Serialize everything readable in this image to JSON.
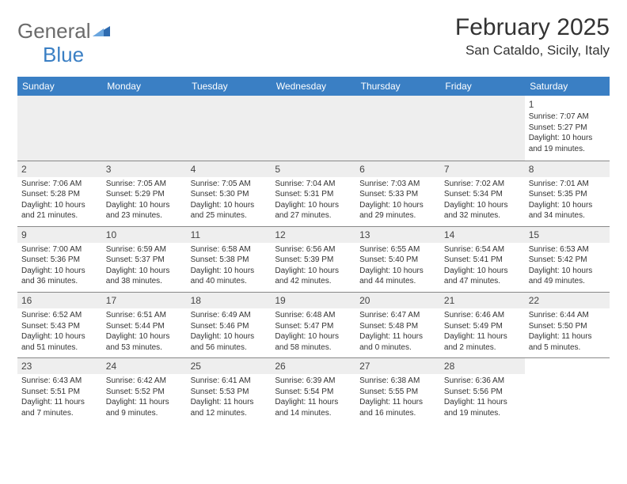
{
  "logo": {
    "text_general": "General",
    "text_blue": "Blue"
  },
  "title": "February 2025",
  "subtitle": "San Cataldo, Sicily, Italy",
  "colors": {
    "header_bg": "#3a7fc4",
    "header_text": "#ffffff",
    "daynum_bg": "#eeeeee",
    "border": "#888888",
    "text": "#333333"
  },
  "weekdays": [
    "Sunday",
    "Monday",
    "Tuesday",
    "Wednesday",
    "Thursday",
    "Friday",
    "Saturday"
  ],
  "days": {
    "1": {
      "sunrise": "7:07 AM",
      "sunset": "5:27 PM",
      "dl_h": 10,
      "dl_m": 19
    },
    "2": {
      "sunrise": "7:06 AM",
      "sunset": "5:28 PM",
      "dl_h": 10,
      "dl_m": 21
    },
    "3": {
      "sunrise": "7:05 AM",
      "sunset": "5:29 PM",
      "dl_h": 10,
      "dl_m": 23
    },
    "4": {
      "sunrise": "7:05 AM",
      "sunset": "5:30 PM",
      "dl_h": 10,
      "dl_m": 25
    },
    "5": {
      "sunrise": "7:04 AM",
      "sunset": "5:31 PM",
      "dl_h": 10,
      "dl_m": 27
    },
    "6": {
      "sunrise": "7:03 AM",
      "sunset": "5:33 PM",
      "dl_h": 10,
      "dl_m": 29
    },
    "7": {
      "sunrise": "7:02 AM",
      "sunset": "5:34 PM",
      "dl_h": 10,
      "dl_m": 32
    },
    "8": {
      "sunrise": "7:01 AM",
      "sunset": "5:35 PM",
      "dl_h": 10,
      "dl_m": 34
    },
    "9": {
      "sunrise": "7:00 AM",
      "sunset": "5:36 PM",
      "dl_h": 10,
      "dl_m": 36
    },
    "10": {
      "sunrise": "6:59 AM",
      "sunset": "5:37 PM",
      "dl_h": 10,
      "dl_m": 38
    },
    "11": {
      "sunrise": "6:58 AM",
      "sunset": "5:38 PM",
      "dl_h": 10,
      "dl_m": 40
    },
    "12": {
      "sunrise": "6:56 AM",
      "sunset": "5:39 PM",
      "dl_h": 10,
      "dl_m": 42
    },
    "13": {
      "sunrise": "6:55 AM",
      "sunset": "5:40 PM",
      "dl_h": 10,
      "dl_m": 44
    },
    "14": {
      "sunrise": "6:54 AM",
      "sunset": "5:41 PM",
      "dl_h": 10,
      "dl_m": 47
    },
    "15": {
      "sunrise": "6:53 AM",
      "sunset": "5:42 PM",
      "dl_h": 10,
      "dl_m": 49
    },
    "16": {
      "sunrise": "6:52 AM",
      "sunset": "5:43 PM",
      "dl_h": 10,
      "dl_m": 51
    },
    "17": {
      "sunrise": "6:51 AM",
      "sunset": "5:44 PM",
      "dl_h": 10,
      "dl_m": 53
    },
    "18": {
      "sunrise": "6:49 AM",
      "sunset": "5:46 PM",
      "dl_h": 10,
      "dl_m": 56
    },
    "19": {
      "sunrise": "6:48 AM",
      "sunset": "5:47 PM",
      "dl_h": 10,
      "dl_m": 58
    },
    "20": {
      "sunrise": "6:47 AM",
      "sunset": "5:48 PM",
      "dl_h": 11,
      "dl_m": 0
    },
    "21": {
      "sunrise": "6:46 AM",
      "sunset": "5:49 PM",
      "dl_h": 11,
      "dl_m": 2
    },
    "22": {
      "sunrise": "6:44 AM",
      "sunset": "5:50 PM",
      "dl_h": 11,
      "dl_m": 5
    },
    "23": {
      "sunrise": "6:43 AM",
      "sunset": "5:51 PM",
      "dl_h": 11,
      "dl_m": 7
    },
    "24": {
      "sunrise": "6:42 AM",
      "sunset": "5:52 PM",
      "dl_h": 11,
      "dl_m": 9
    },
    "25": {
      "sunrise": "6:41 AM",
      "sunset": "5:53 PM",
      "dl_h": 11,
      "dl_m": 12
    },
    "26": {
      "sunrise": "6:39 AM",
      "sunset": "5:54 PM",
      "dl_h": 11,
      "dl_m": 14
    },
    "27": {
      "sunrise": "6:38 AM",
      "sunset": "5:55 PM",
      "dl_h": 11,
      "dl_m": 16
    },
    "28": {
      "sunrise": "6:36 AM",
      "sunset": "5:56 PM",
      "dl_h": 11,
      "dl_m": 19
    }
  },
  "grid": [
    [
      null,
      null,
      null,
      null,
      null,
      null,
      "1"
    ],
    [
      "2",
      "3",
      "4",
      "5",
      "6",
      "7",
      "8"
    ],
    [
      "9",
      "10",
      "11",
      "12",
      "13",
      "14",
      "15"
    ],
    [
      "16",
      "17",
      "18",
      "19",
      "20",
      "21",
      "22"
    ],
    [
      "23",
      "24",
      "25",
      "26",
      "27",
      "28",
      null
    ]
  ],
  "labels": {
    "sunrise": "Sunrise: ",
    "sunset": "Sunset: ",
    "daylight_prefix": "Daylight: ",
    "hours_word": " hours",
    "and_word": "and ",
    "minutes_word": " minutes."
  }
}
